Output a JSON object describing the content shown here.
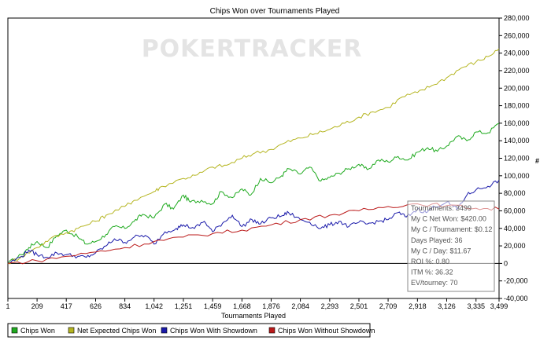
{
  "chart_data": {
    "type": "line",
    "title": "Chips Won over Tournaments Played",
    "xlabel": "Tournaments Played",
    "ylabel": "",
    "y_unit_label": "#",
    "xlim": [
      1,
      3499
    ],
    "ylim": [
      -40000,
      280000
    ],
    "x_ticks": [
      1,
      209,
      417,
      626,
      834,
      1042,
      1251,
      1459,
      1668,
      1876,
      2084,
      2293,
      2501,
      2709,
      2918,
      3126,
      3335,
      3499
    ],
    "x_tick_labels": [
      "1",
      "209",
      "417",
      "626",
      "834",
      "1,042",
      "1,251",
      "1,459",
      "1,668",
      "1,876",
      "2,084",
      "2,293",
      "2,501",
      "2,709",
      "2,918",
      "3,126",
      "3,335",
      "3,499"
    ],
    "y_ticks": [
      -40000,
      -20000,
      0,
      20000,
      40000,
      60000,
      80000,
      100000,
      120000,
      140000,
      160000,
      180000,
      200000,
      220000,
      240000,
      260000,
      280000
    ],
    "y_tick_labels": [
      "-40,000",
      "-20,000",
      "0",
      "20,000",
      "40,000",
      "60,000",
      "80,000",
      "100,000",
      "120,000",
      "140,000",
      "160,000",
      "180,000",
      "200,000",
      "220,000",
      "240,000",
      "260,000",
      "280,000"
    ],
    "grid": false,
    "legend_position": "bottom",
    "watermark": "POKERTRACKER",
    "series": [
      {
        "name": "Chips Won",
        "color": "#1faa1f",
        "x": [
          1,
          100,
          150,
          209,
          280,
          350,
          417,
          500,
          560,
          626,
          700,
          760,
          834,
          900,
          960,
          1042,
          1120,
          1180,
          1251,
          1300,
          1380,
          1459,
          1520,
          1600,
          1668,
          1730,
          1800,
          1876,
          1950,
          2000,
          2084,
          2150,
          2230,
          2293,
          2360,
          2430,
          2501,
          2560,
          2640,
          2709,
          2780,
          2850,
          2918,
          2990,
          3060,
          3126,
          3200,
          3270,
          3335,
          3420,
          3499
        ],
        "y": [
          0,
          10000,
          18000,
          25000,
          18000,
          32000,
          38000,
          30000,
          22000,
          25000,
          33000,
          42000,
          40000,
          48000,
          56000,
          52000,
          68000,
          62000,
          78000,
          70000,
          72000,
          68000,
          82000,
          75000,
          85000,
          78000,
          97000,
          92000,
          100000,
          108000,
          102000,
          110000,
          94000,
          98000,
          103000,
          108000,
          113000,
          107000,
          118000,
          116000,
          122000,
          118000,
          127000,
          132000,
          128000,
          134000,
          145000,
          140000,
          150000,
          149000,
          160000
        ]
      },
      {
        "name": "Net Expected Chips Won",
        "color": "#b5b520",
        "x": [
          1,
          100,
          209,
          300,
          417,
          500,
          626,
          700,
          834,
          900,
          1042,
          1100,
          1251,
          1350,
          1459,
          1560,
          1668,
          1760,
          1876,
          1980,
          2084,
          2190,
          2293,
          2400,
          2501,
          2600,
          2709,
          2810,
          2918,
          3020,
          3126,
          3230,
          3335,
          3420,
          3499
        ],
        "y": [
          0,
          8000,
          18000,
          28000,
          35000,
          40000,
          48000,
          55000,
          65000,
          72000,
          82000,
          88000,
          97000,
          101000,
          110000,
          112000,
          120000,
          126000,
          130000,
          138000,
          143000,
          148000,
          153000,
          160000,
          167000,
          173000,
          178000,
          190000,
          195000,
          203000,
          212000,
          223000,
          230000,
          236000,
          245000
        ]
      },
      {
        "name": "Chips Won With Showdown",
        "color": "#1a1aaa",
        "x": [
          1,
          100,
          150,
          209,
          280,
          350,
          417,
          500,
          560,
          626,
          700,
          760,
          834,
          900,
          980,
          1042,
          1120,
          1200,
          1251,
          1330,
          1400,
          1459,
          1530,
          1600,
          1668,
          1740,
          1800,
          1876,
          1950,
          2000,
          2084,
          2150,
          2230,
          2293,
          2360,
          2430,
          2501,
          2560,
          2640,
          2709,
          2780,
          2840,
          2918,
          2980,
          3040,
          3126,
          3200,
          3270,
          3335,
          3420,
          3499
        ],
        "y": [
          0,
          8000,
          15000,
          10000,
          7000,
          12000,
          10000,
          8000,
          7000,
          12000,
          20000,
          28000,
          24000,
          30000,
          32000,
          22000,
          36000,
          40000,
          44000,
          40000,
          48000,
          36000,
          46000,
          55000,
          42000,
          50000,
          45000,
          52000,
          54000,
          58000,
          50000,
          47000,
          40000,
          44000,
          48000,
          42000,
          47000,
          45000,
          48000,
          50000,
          58000,
          53000,
          62000,
          58000,
          65000,
          70000,
          62000,
          78000,
          84000,
          88000,
          95000
        ]
      },
      {
        "name": "Chips Won Without Showdown",
        "color": "#bb1a1a",
        "x": [
          1,
          209,
          417,
          626,
          834,
          1042,
          1251,
          1459,
          1668,
          1876,
          2084,
          2293,
          2501,
          2709,
          2918,
          3126,
          3335,
          3499
        ],
        "y": [
          0,
          3000,
          8000,
          13000,
          18000,
          25000,
          30000,
          34000,
          38000,
          44000,
          50000,
          55000,
          60000,
          65000,
          68000,
          66000,
          63000,
          62000
        ]
      }
    ],
    "info_box": {
      "lines": [
        "Tournaments: 3499",
        "My C Net Won: $420.00",
        "My C / Tournament: $0.12",
        "Days Played: 36",
        "My C / Day: $11.67",
        "ROI %: 0.80",
        "ITM %: 36.32",
        "EV/tourney: 70"
      ]
    }
  }
}
